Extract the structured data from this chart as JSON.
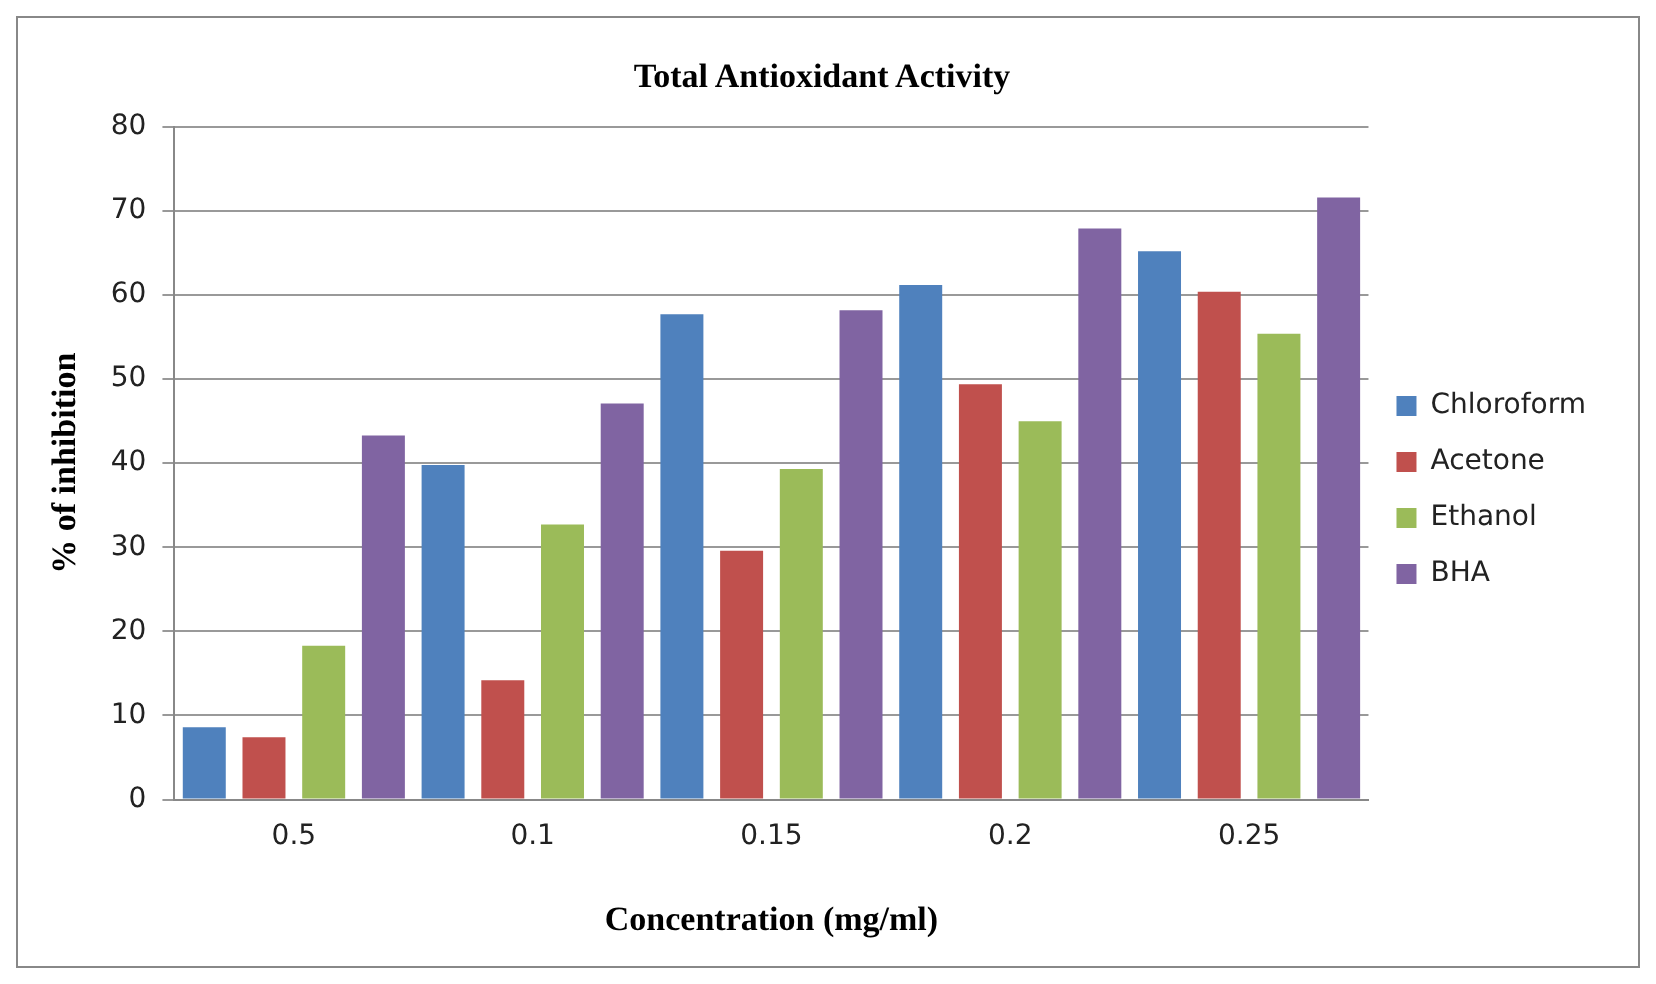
{
  "chart_data": {
    "type": "bar",
    "title": "Total Antioxidant Activity",
    "xlabel": "Concentration (mg/ml)",
    "ylabel": "% of inhibition",
    "categories": [
      "0.5",
      "0.1",
      "0.15",
      "0.2",
      "0.25"
    ],
    "series": [
      {
        "name": "Chloroform",
        "color": "#4f81bd",
        "values": [
          8.6,
          39.8,
          57.7,
          61.2,
          65.2
        ]
      },
      {
        "name": "Acetone",
        "color": "#c0504d",
        "values": [
          7.4,
          14.2,
          29.6,
          49.4,
          60.4
        ]
      },
      {
        "name": "Ethanol",
        "color": "#9bbb59",
        "values": [
          18.3,
          32.7,
          39.3,
          45.0,
          55.4
        ]
      },
      {
        "name": "BHA",
        "color": "#8064a2",
        "values": [
          43.3,
          47.1,
          58.2,
          67.9,
          71.6
        ]
      }
    ],
    "ylim": [
      0,
      80
    ],
    "yticks": [
      0,
      10,
      20,
      30,
      40,
      50,
      60,
      70,
      80
    ],
    "grid": "y",
    "legend": "right"
  }
}
